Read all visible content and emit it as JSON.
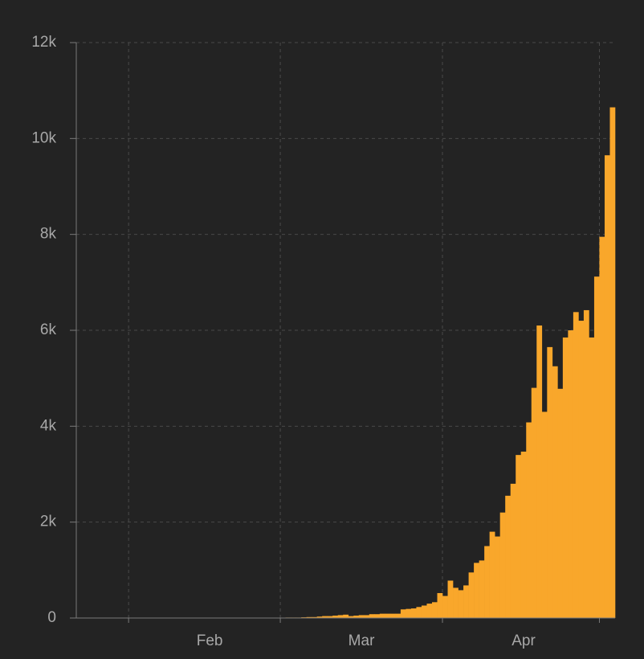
{
  "chart_data": {
    "type": "bar",
    "categories": [
      null,
      null,
      null,
      null,
      null,
      null,
      null,
      null,
      null,
      null,
      null,
      null,
      null,
      null,
      null,
      null,
      null,
      null,
      null,
      null,
      null,
      null,
      null,
      null,
      null,
      "Feb",
      null,
      null,
      null,
      null,
      null,
      null,
      null,
      null,
      null,
      null,
      null,
      null,
      null,
      null,
      null,
      null,
      null,
      null,
      null,
      null,
      null,
      null,
      null,
      null,
      null,
      null,
      null,
      null,
      "Mar",
      null,
      null,
      null,
      null,
      null,
      null,
      null,
      null,
      null,
      null,
      null,
      null,
      null,
      null,
      null,
      null,
      null,
      null,
      null,
      null,
      null,
      null,
      null,
      null,
      null,
      null,
      null,
      null,
      null,
      null,
      "Apr",
      null,
      null,
      null,
      null,
      null,
      null,
      null,
      null,
      null,
      null,
      null,
      null,
      null,
      null,
      null,
      null,
      null
    ],
    "values": [
      0,
      0,
      0,
      0,
      0,
      0,
      0,
      0,
      0,
      0,
      0,
      0,
      0,
      0,
      0,
      0,
      0,
      0,
      0,
      0,
      0,
      0,
      0,
      0,
      0,
      0,
      0,
      0,
      0,
      0,
      0,
      0,
      0,
      0,
      0,
      0,
      0,
      0,
      0,
      5,
      10,
      10,
      10,
      15,
      20,
      20,
      30,
      40,
      40,
      50,
      60,
      70,
      40,
      50,
      60,
      60,
      80,
      80,
      90,
      90,
      90,
      90,
      180,
      190,
      200,
      230,
      260,
      300,
      330,
      520,
      460,
      780,
      630,
      580,
      680,
      950,
      1150,
      1200,
      1500,
      1800,
      1700,
      2200,
      2550,
      2800,
      3400,
      3470,
      4080,
      4800,
      6100,
      4300,
      5650,
      5250,
      4780,
      5850,
      6000,
      6380,
      6200,
      6420,
      5850,
      7120,
      7950,
      9650,
      10650
    ],
    "color": "#f9a72b",
    "ylim": [
      0,
      12000
    ],
    "yticks": [
      0,
      {
        "value": 2000,
        "label": "2k"
      },
      {
        "value": 4000,
        "label": "4k"
      },
      {
        "value": 6000,
        "label": "6k"
      },
      {
        "value": 8000,
        "label": "8k"
      },
      {
        "value": 10000,
        "label": "10k"
      },
      {
        "value": 12000,
        "label": "12k"
      }
    ],
    "grid": true
  }
}
